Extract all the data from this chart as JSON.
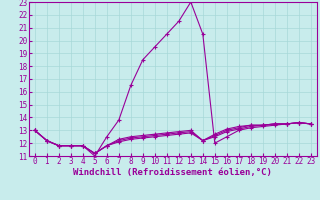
{
  "xlabel": "Windchill (Refroidissement éolien,°C)",
  "ylabel": "",
  "background_color": "#c8ecec",
  "grid_color": "#a8d8d8",
  "line_color": "#990099",
  "xlim": [
    -0.5,
    23.5
  ],
  "ylim": [
    11,
    23
  ],
  "xticks": [
    0,
    1,
    2,
    3,
    4,
    5,
    6,
    7,
    8,
    9,
    10,
    11,
    12,
    13,
    14,
    15,
    16,
    17,
    18,
    19,
    20,
    21,
    22,
    23
  ],
  "yticks": [
    11,
    12,
    13,
    14,
    15,
    16,
    17,
    18,
    19,
    20,
    21,
    22,
    23
  ],
  "curves": [
    {
      "x": [
        0,
        1,
        2,
        3,
        4,
        5,
        6,
        7,
        8,
        9,
        10,
        11,
        12,
        13,
        14,
        15,
        16,
        17,
        18,
        19,
        20,
        21,
        22,
        23
      ],
      "y": [
        13,
        12.2,
        11.8,
        11.8,
        11.8,
        11.0,
        12.5,
        13.8,
        16.5,
        18.5,
        19.5,
        20.5,
        21.5,
        23.0,
        20.5,
        12.0,
        12.5,
        13.0,
        13.2,
        13.3,
        13.4,
        13.5,
        13.6,
        13.5
      ]
    },
    {
      "x": [
        0,
        1,
        2,
        3,
        4,
        5,
        6,
        7,
        8,
        9,
        10,
        11,
        12,
        13,
        14,
        15,
        16,
        17,
        18,
        19,
        20,
        21,
        22,
        23
      ],
      "y": [
        13,
        12.2,
        11.8,
        11.8,
        11.8,
        11.2,
        11.8,
        12.3,
        12.5,
        12.6,
        12.7,
        12.8,
        12.9,
        13.0,
        12.2,
        12.5,
        12.9,
        13.1,
        13.3,
        13.4,
        13.5,
        13.5,
        13.6,
        13.5
      ]
    },
    {
      "x": [
        0,
        1,
        2,
        3,
        4,
        5,
        6,
        7,
        8,
        9,
        10,
        11,
        12,
        13,
        14,
        15,
        16,
        17,
        18,
        19,
        20,
        21,
        22,
        23
      ],
      "y": [
        13,
        12.2,
        11.8,
        11.8,
        11.8,
        11.2,
        11.8,
        12.2,
        12.4,
        12.5,
        12.6,
        12.7,
        12.8,
        12.9,
        12.2,
        12.6,
        13.0,
        13.2,
        13.4,
        13.4,
        13.5,
        13.5,
        13.6,
        13.5
      ]
    },
    {
      "x": [
        0,
        1,
        2,
        3,
        4,
        5,
        6,
        7,
        8,
        9,
        10,
        11,
        12,
        13,
        14,
        15,
        16,
        17,
        18,
        19,
        20,
        21,
        22,
        23
      ],
      "y": [
        13,
        12.2,
        11.8,
        11.8,
        11.8,
        11.2,
        11.8,
        12.1,
        12.3,
        12.4,
        12.5,
        12.6,
        12.7,
        12.8,
        12.2,
        12.7,
        13.1,
        13.3,
        13.4,
        13.4,
        13.5,
        13.5,
        13.6,
        13.5
      ]
    }
  ],
  "marker": "+",
  "markersize": 3,
  "markeredgewidth": 0.8,
  "linewidth": 0.8,
  "xlabel_fontsize": 6.5,
  "tick_fontsize": 5.5
}
